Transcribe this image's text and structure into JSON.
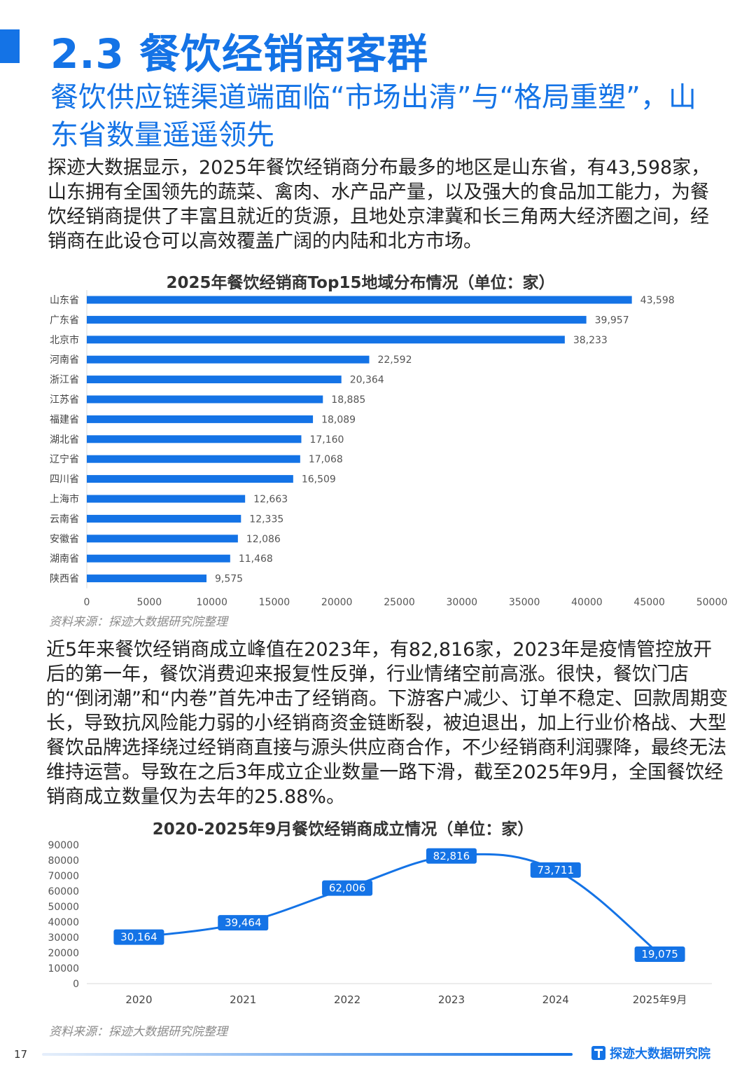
{
  "header": {
    "section_title": "2.3 餐饮经销商客群",
    "subtitle": "餐饮供应链渠道端面临“市场出清”与“格局重塑”，山东省数量遥遥领先"
  },
  "body": {
    "paragraph1": "探迹大数据显示，2025年餐饮经销商分布最多的地区是山东省，有43,598家，山东拥有全国领先的蔬菜、禽肉、水产品产量，以及强大的食品加工能力，为餐饮经销商提供了丰富且就近的货源，且地处京津冀和长三角两大经济圈之间，经销商在此设仓可以高效覆盖广阔的内陆和北方市场。",
    "paragraph2": "近5年来餐饮经销商成立峰值在2023年，有82,816家，2023年是疫情管控放开后的第一年，餐饮消费迎来报复性反弹，行业情绪空前高涨。很快，餐饮门店的“倒闭潮”和“内卷”首先冲击了经销商。下游客户减少、订单不稳定、回款周期变长，导致抗风险能力弱的小经销商资金链断裂，被迫退出，加上行业价格战、大型餐饮品牌选择绕过经销商直接与源头供应商合作，不少经销商利润骤降，最终无法维持运营。导致在之后3年成立企业数量一路下滑，截至2025年9月，全国餐饮经销商成立数量仅为去年的25.88%。"
  },
  "chart_data": [
    {
      "type": "bar",
      "orientation": "horizontal",
      "title": "2025年餐饮经销商Top15地域分布情况（单位：家）",
      "categories": [
        "山东省",
        "广东省",
        "北京市",
        "河南省",
        "浙江省",
        "江苏省",
        "福建省",
        "湖北省",
        "辽宁省",
        "四川省",
        "上海市",
        "云南省",
        "安徽省",
        "湖南省",
        "陕西省"
      ],
      "values": [
        43598,
        39957,
        38233,
        22592,
        20364,
        18885,
        18089,
        17160,
        17068,
        16509,
        12663,
        12335,
        12086,
        11468,
        9575
      ],
      "value_labels": [
        "43,598",
        "39,957",
        "38,233",
        "22,592",
        "20,364",
        "18,885",
        "18,089",
        "17,160",
        "17,068",
        "16,509",
        "12,663",
        "12,335",
        "12,086",
        "11,468",
        "9,575"
      ],
      "xlim": [
        0,
        50000
      ],
      "xticks": [
        "0",
        "5000",
        "10000",
        "15000",
        "20000",
        "25000",
        "30000",
        "35000",
        "40000",
        "45000",
        "50000"
      ],
      "color": "#1473e6",
      "source": "资料来源：探迹大数据研究院整理"
    },
    {
      "type": "line",
      "title": "2020-2025年9月餐饮经销商成立情况（单位：家）",
      "categories": [
        "2020",
        "2021",
        "2022",
        "2023",
        "2024",
        "2025年9月"
      ],
      "values": [
        30164,
        39464,
        62006,
        82816,
        73711,
        19075
      ],
      "value_labels": [
        "30,164",
        "39,464",
        "62,006",
        "82,816",
        "73,711",
        "19,075"
      ],
      "ylim": [
        0,
        90000
      ],
      "yticks": [
        "0",
        "10000",
        "20000",
        "30000",
        "40000",
        "50000",
        "60000",
        "70000",
        "80000",
        "90000"
      ],
      "color": "#1473e6",
      "source": "资料来源：探迹大数据研究院整理"
    }
  ],
  "footer": {
    "page_number": "17",
    "brand": "探迹大数据研究院"
  }
}
